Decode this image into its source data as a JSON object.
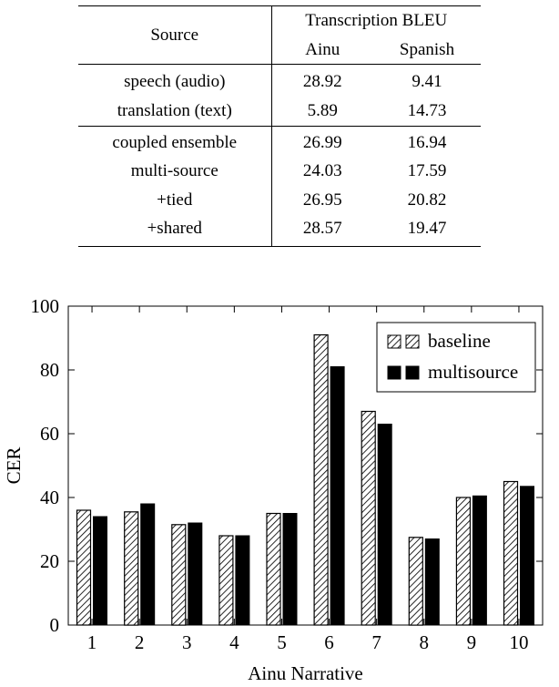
{
  "table": {
    "header": {
      "source": "Source",
      "group": "Transcription BLEU",
      "col_ainu": "Ainu",
      "col_spanish": "Spanish"
    },
    "rows": [
      {
        "source": "speech (audio)",
        "ainu": "28.92",
        "spanish": "9.41"
      },
      {
        "source": "translation (text)",
        "ainu": "5.89",
        "spanish": "14.73"
      },
      {
        "source": "coupled ensemble",
        "ainu": "26.99",
        "spanish": "16.94"
      },
      {
        "source": "multi-source",
        "ainu": "24.03",
        "spanish": "17.59"
      },
      {
        "source": "+tied",
        "ainu": "26.95",
        "spanish": "20.82"
      },
      {
        "source": "+shared",
        "ainu": "28.57",
        "spanish": "19.47"
      }
    ]
  },
  "chart_data": {
    "type": "bar",
    "title": "",
    "xlabel": "Ainu Narrative",
    "ylabel": "CER",
    "ylim": [
      0,
      100
    ],
    "yticks": [
      0,
      20,
      40,
      60,
      80,
      100
    ],
    "categories": [
      "1",
      "2",
      "3",
      "4",
      "5",
      "6",
      "7",
      "8",
      "9",
      "10"
    ],
    "series": [
      {
        "name": "baseline",
        "pattern": "north-east-hatch",
        "values": [
          36,
          35.5,
          31.5,
          28,
          35,
          91,
          67,
          27.5,
          40,
          45
        ]
      },
      {
        "name": "multisource",
        "pattern": "solid-black",
        "values": [
          34,
          38,
          32,
          28,
          35,
          81,
          63,
          27,
          40.5,
          43.5
        ]
      }
    ],
    "legend_position": "top-right",
    "grid": false,
    "colors": {
      "bar_fill": "#000000",
      "axis": "#000000",
      "background": "#ffffff"
    }
  }
}
